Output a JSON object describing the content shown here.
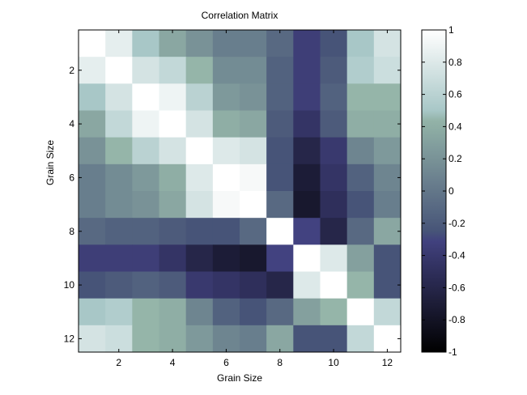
{
  "chart_data": {
    "type": "heatmap",
    "title": "Correlation Matrix",
    "xlabel": "Grain Size",
    "ylabel": "Grain Size",
    "size": 12,
    "x_ticks": [
      2,
      4,
      6,
      8,
      10,
      12
    ],
    "y_ticks": [
      2,
      4,
      6,
      8,
      10,
      12
    ],
    "x_tick_labels": [
      "2",
      "4",
      "6",
      "8",
      "10",
      "12"
    ],
    "y_tick_labels": [
      "2",
      "4",
      "6",
      "8",
      "10",
      "12"
    ],
    "colorbar": {
      "min": -1,
      "max": 1,
      "ticks": [
        1,
        0.8,
        0.6,
        0.4,
        0.2,
        0,
        -0.2,
        -0.4,
        -0.6,
        -0.8,
        -1
      ],
      "tick_labels": [
        "1",
        "0.8",
        "0.6",
        "0.4",
        "0.2",
        "0",
        "-0.2",
        "-0.4",
        "-0.6",
        "-0.8",
        "-1"
      ],
      "colormap": "bone"
    },
    "matrix": [
      [
        1.0,
        0.85,
        0.5,
        0.35,
        0.2,
        0.05,
        0.05,
        -0.1,
        -0.35,
        -0.25,
        0.5,
        0.75
      ],
      [
        0.85,
        1.0,
        0.75,
        0.65,
        0.45,
        0.15,
        0.15,
        -0.15,
        -0.35,
        -0.2,
        0.55,
        0.7
      ],
      [
        0.5,
        0.75,
        1.0,
        0.9,
        0.6,
        0.25,
        0.2,
        -0.15,
        -0.35,
        -0.15,
        0.45,
        0.45
      ],
      [
        0.35,
        0.65,
        0.9,
        1.0,
        0.75,
        0.4,
        0.35,
        -0.2,
        -0.45,
        -0.2,
        0.4,
        0.4
      ],
      [
        0.2,
        0.45,
        0.6,
        0.75,
        1.0,
        0.8,
        0.75,
        -0.25,
        -0.6,
        -0.4,
        0.1,
        0.25
      ],
      [
        0.05,
        0.15,
        0.25,
        0.4,
        0.8,
        1.0,
        0.95,
        -0.25,
        -0.7,
        -0.45,
        -0.15,
        0.1
      ],
      [
        0.05,
        0.15,
        0.2,
        0.35,
        0.75,
        0.95,
        1.0,
        -0.1,
        -0.75,
        -0.5,
        -0.25,
        0.05
      ],
      [
        -0.1,
        -0.15,
        -0.15,
        -0.2,
        -0.25,
        -0.25,
        -0.1,
        1.0,
        -0.3,
        -0.6,
        -0.1,
        0.35
      ],
      [
        -0.35,
        -0.35,
        -0.35,
        -0.45,
        -0.6,
        -0.7,
        -0.75,
        -0.3,
        1.0,
        0.8,
        0.3,
        -0.25
      ],
      [
        -0.25,
        -0.2,
        -0.15,
        -0.2,
        -0.4,
        -0.45,
        -0.5,
        -0.6,
        0.8,
        1.0,
        0.45,
        -0.25
      ],
      [
        0.5,
        0.55,
        0.45,
        0.4,
        0.1,
        -0.15,
        -0.25,
        -0.1,
        0.3,
        0.45,
        1.0,
        0.65
      ],
      [
        0.75,
        0.7,
        0.45,
        0.4,
        0.25,
        0.1,
        0.05,
        0.35,
        -0.25,
        -0.25,
        0.65,
        1.0
      ]
    ]
  }
}
